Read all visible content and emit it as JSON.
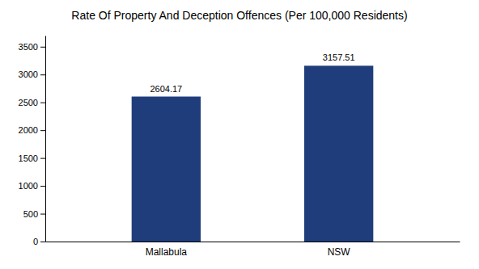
{
  "chart_data": {
    "type": "bar",
    "title": "Rate Of Property And Deception Offences (Per 100,000 Residents)",
    "categories": [
      "Mallabula",
      "NSW"
    ],
    "values": [
      2604.17,
      3157.51
    ],
    "colors": [
      "#1f3d7a",
      "#1f3d7a"
    ],
    "ylim": [
      0,
      3700
    ],
    "yticks": [
      0,
      500,
      1000,
      1500,
      2000,
      2500,
      3000,
      3500
    ],
    "grid": false,
    "data_labels": true
  }
}
